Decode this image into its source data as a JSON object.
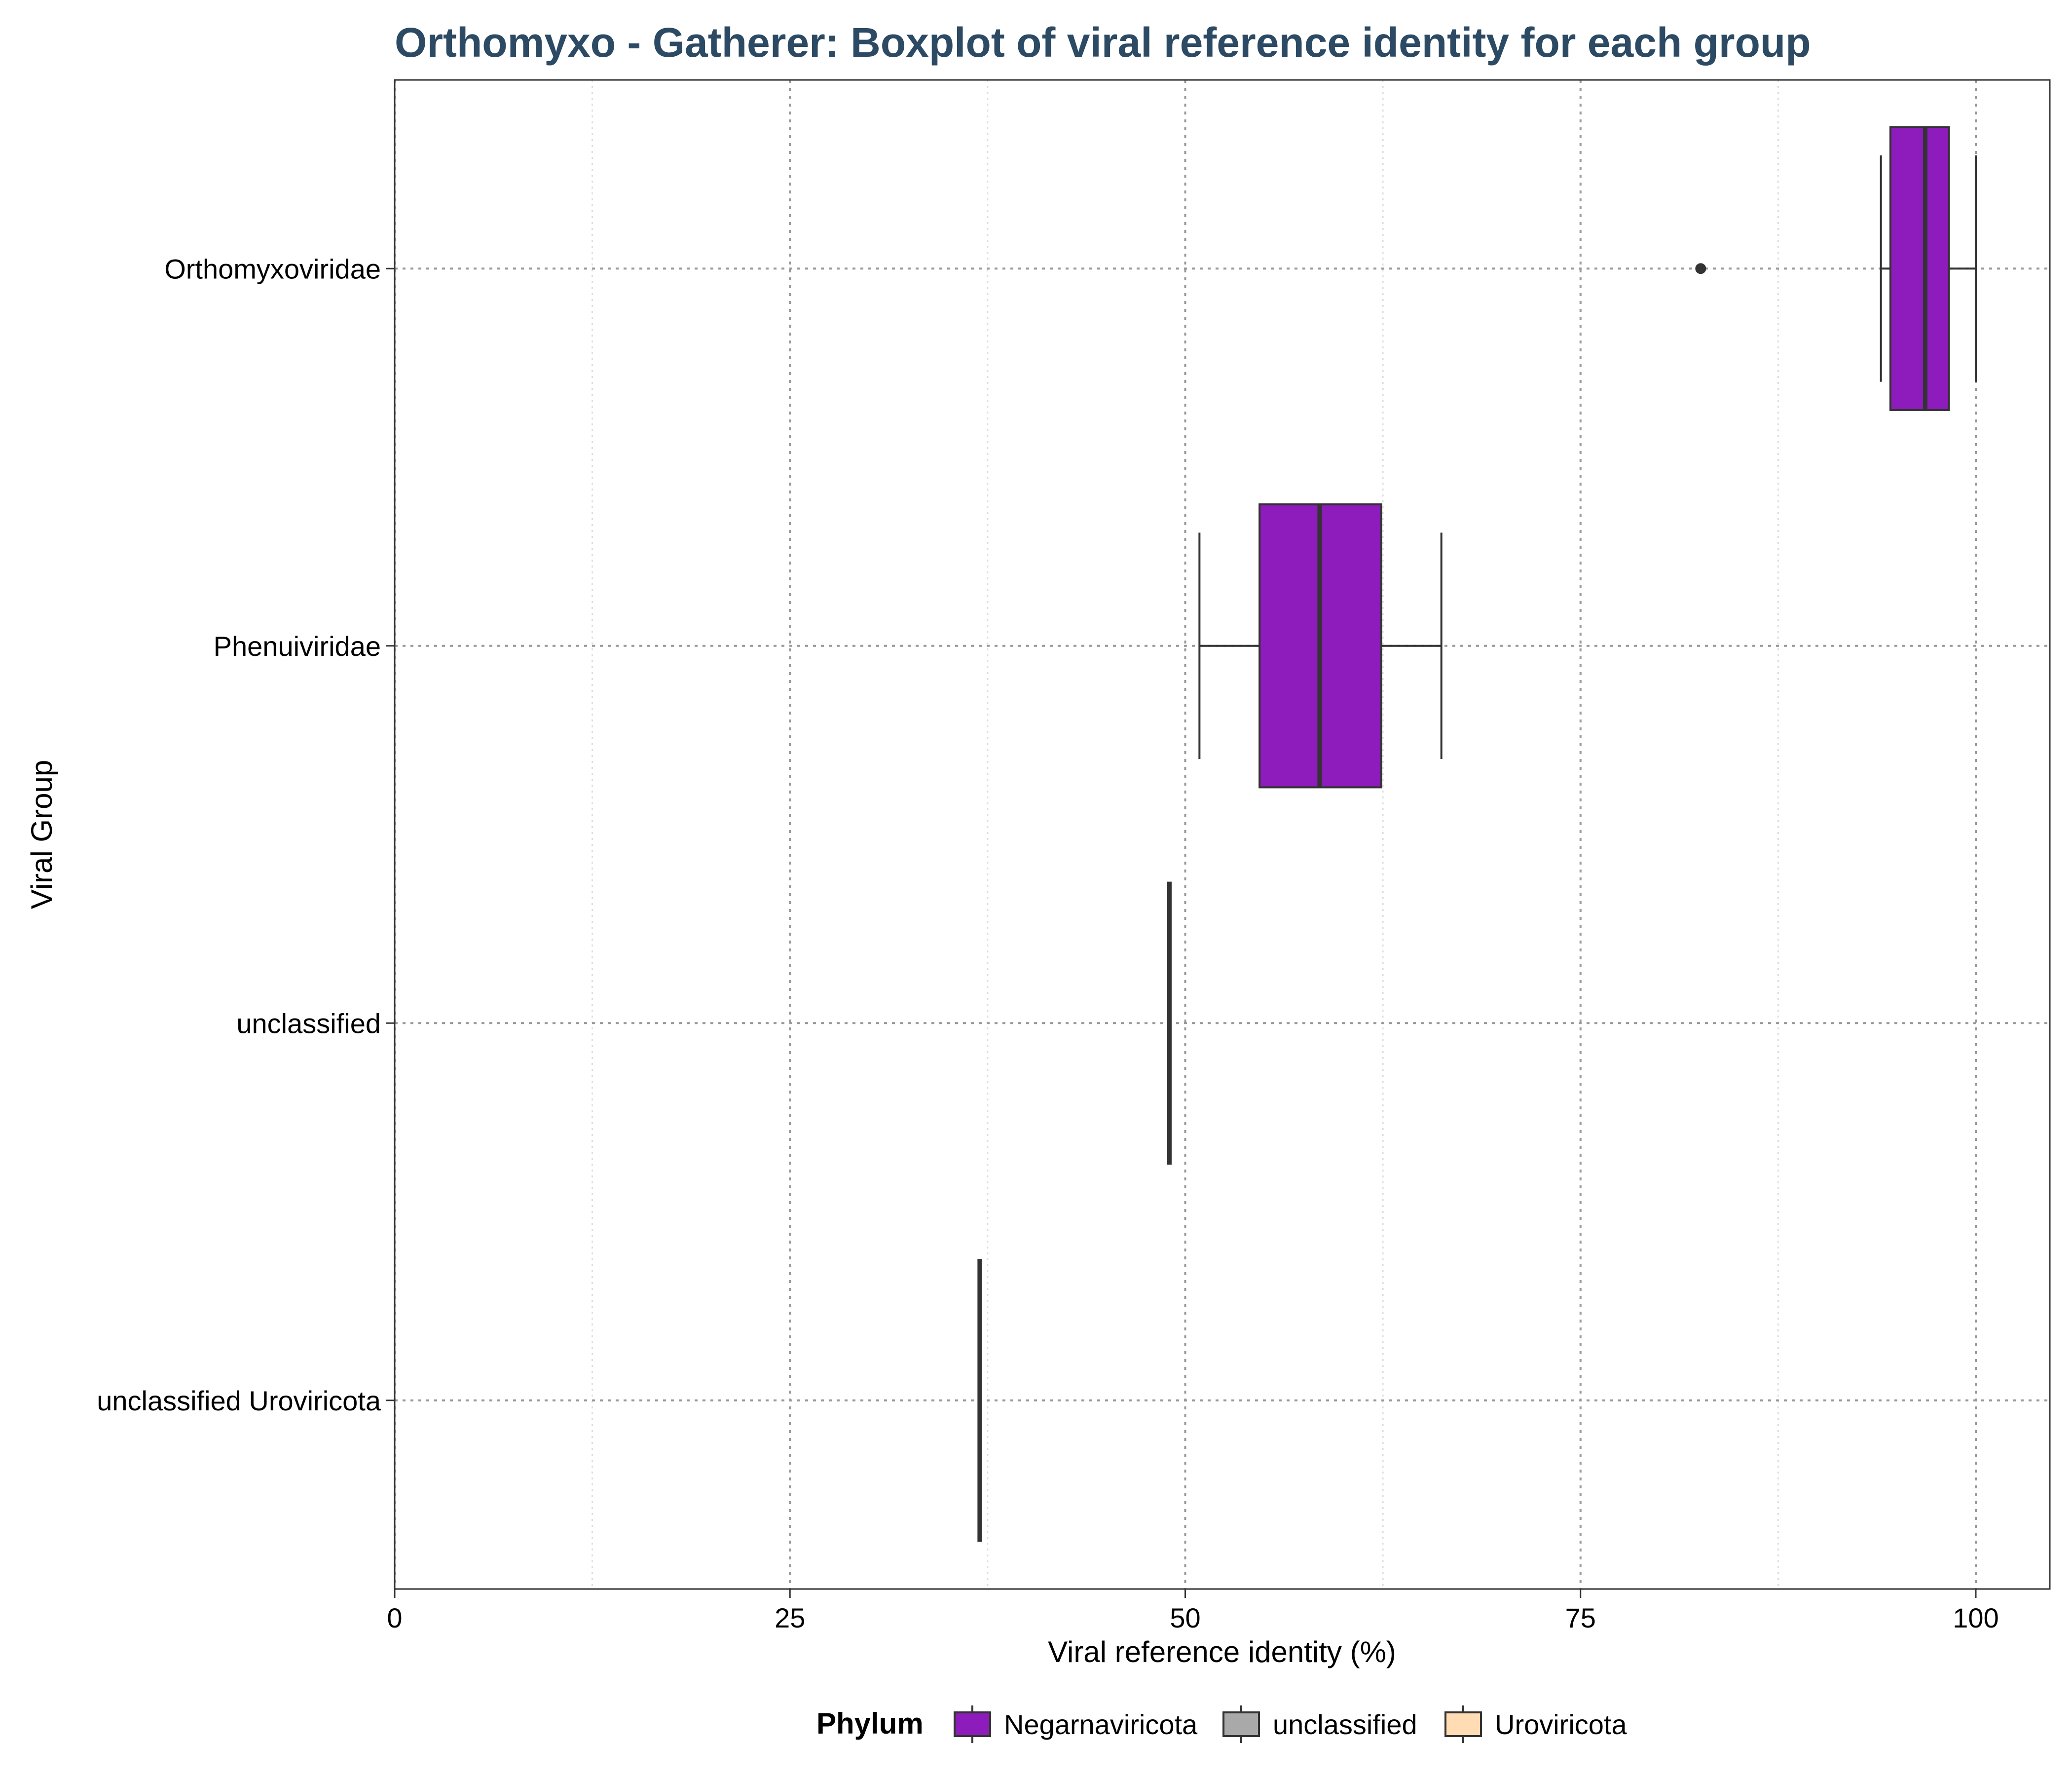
{
  "chart_data": {
    "type": "boxplot",
    "orientation": "horizontal",
    "title": "Orthomyxo - Gatherer: Boxplot of viral reference identity for each group",
    "xlabel": "Viral reference identity (%)",
    "ylabel": "Viral Group",
    "xlim": [
      0,
      105
    ],
    "xticks": [
      0,
      25,
      50,
      75,
      100
    ],
    "grid": true,
    "legend": {
      "title": "Phylum",
      "placement": "bottom",
      "entries": [
        {
          "label": "Negarnaviricota",
          "color": "#8e1bbb"
        },
        {
          "label": "unclassified",
          "color": "#a9a9a9"
        },
        {
          "label": "Uroviricota",
          "color": "#ffdcb4"
        }
      ]
    },
    "categories": [
      "Orthomyxoviridae",
      "Phenuiviridae",
      "unclassified",
      "unclassified Uroviricota"
    ],
    "series": [
      {
        "category": "Orthomyxoviridae",
        "phylum": "Negarnaviricota",
        "whisker_low": 94,
        "q1": 94.6,
        "median": 96.8,
        "q3": 98.3,
        "whisker_high": 100,
        "outliers": [
          82.6
        ]
      },
      {
        "category": "Phenuiviridae",
        "phylum": "Negarnaviricota",
        "whisker_low": 50.9,
        "q1": 54.7,
        "median": 58.5,
        "q3": 62.4,
        "whisker_high": 66.2,
        "outliers": []
      },
      {
        "category": "unclassified",
        "phylum": "unclassified",
        "whisker_low": 49,
        "q1": 49,
        "median": 49,
        "q3": 49,
        "whisker_high": 49,
        "outliers": []
      },
      {
        "category": "unclassified Uroviricota",
        "phylum": "Uroviricota",
        "whisker_low": 37,
        "q1": 37,
        "median": 37,
        "q3": 37,
        "whisker_high": 37,
        "outliers": []
      }
    ],
    "colors": {
      "title": "#2c4a63",
      "box_stroke": "#333333",
      "grid_major": "#999999",
      "grid_minor": "#dddddd"
    }
  }
}
